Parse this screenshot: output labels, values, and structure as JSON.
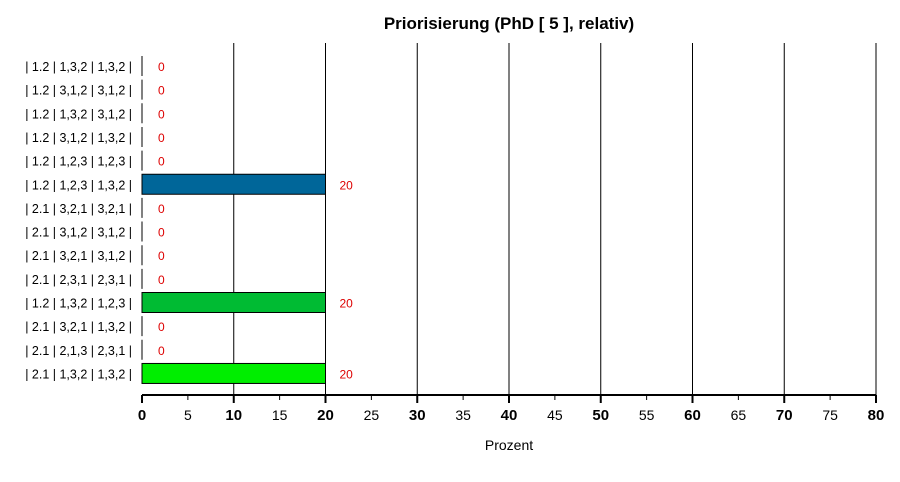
{
  "chart_data": {
    "type": "bar",
    "orientation": "horizontal",
    "title": "Priorisierung (PhD [ 5 ], relativ)",
    "xlabel": "Prozent",
    "ylabel": "",
    "xlim": [
      0,
      80
    ],
    "major_ticks": [
      0,
      10,
      20,
      30,
      40,
      50,
      60,
      70,
      80
    ],
    "minor_ticks": [
      5,
      15,
      25,
      35,
      45,
      55,
      65,
      75
    ],
    "grid": true,
    "categories": [
      "| 1.2 | 1,3,2 | 1,3,2 |",
      "| 1.2 | 3,1,2 | 3,1,2 |",
      "| 1.2 | 1,3,2 | 3,1,2 |",
      "| 1.2 | 3,1,2 | 1,3,2 |",
      "| 1.2 | 1,2,3 | 1,2,3 |",
      "| 1.2 | 1,2,3 | 1,3,2 |",
      "| 2.1 | 3,2,1 | 3,2,1 |",
      "| 2.1 | 3,1,2 | 3,1,2 |",
      "| 2.1 | 3,2,1 | 3,1,2 |",
      "| 2.1 | 2,3,1 | 2,3,1 |",
      "| 1.2 | 1,3,2 | 1,2,3 |",
      "| 2.1 | 3,2,1 | 1,3,2 |",
      "| 2.1 | 2,1,3 | 2,3,1 |",
      "| 2.1 | 1,3,2 | 1,3,2 |"
    ],
    "values": [
      0,
      0,
      0,
      0,
      0,
      20,
      0,
      0,
      0,
      0,
      20,
      0,
      0,
      20
    ],
    "value_labels": [
      "0",
      "0",
      "0",
      "0",
      "0",
      "20",
      "0",
      "0",
      "0",
      "0",
      "20",
      "0",
      "0",
      "20"
    ],
    "bar_colors": [
      "#ffffff",
      "#ffffff",
      "#ffffff",
      "#ffffff",
      "#ffffff",
      "#006699",
      "#ffffff",
      "#ffffff",
      "#ffffff",
      "#ffffff",
      "#00bb33",
      "#ffffff",
      "#ffffff",
      "#00ee00"
    ],
    "label_color": "#dd0000",
    "grid_color": "#000000"
  }
}
